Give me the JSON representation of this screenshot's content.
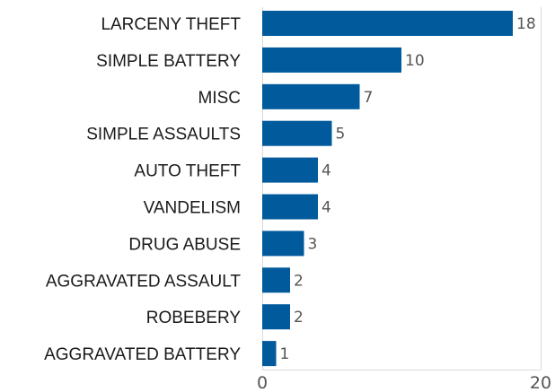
{
  "chart_data": {
    "type": "bar",
    "orientation": "horizontal",
    "categories": [
      "LARCENY THEFT",
      "SIMPLE BATTERY",
      "MISC",
      "SIMPLE ASSAULTS",
      "AUTO THEFT",
      "VANDELISM",
      "DRUG ABUSE",
      "AGGRAVATED ASSAULT",
      "ROBEBERY",
      "AGGRAVATED BATTERY"
    ],
    "values": [
      18,
      10,
      7,
      5,
      4,
      4,
      3,
      2,
      2,
      1
    ],
    "xlim": [
      0,
      20
    ],
    "xticks": [
      "0",
      "20"
    ],
    "bar_color": "#005a9c",
    "grid": true
  }
}
